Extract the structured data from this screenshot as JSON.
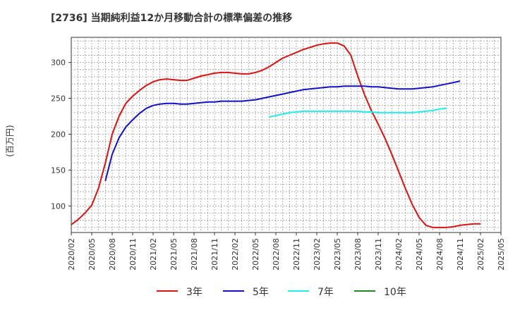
{
  "chart_data": {
    "type": "line",
    "title": "[2736]  当期純利益12か月移動合計の標準偏差の推移",
    "ylabel": "(百万円)",
    "xlabel": "",
    "ylim": [
      63,
      335
    ],
    "yticks": [
      100,
      150,
      200,
      250,
      300
    ],
    "xticks": [
      "2020/02",
      "2020/05",
      "2020/08",
      "2020/11",
      "2021/02",
      "2021/05",
      "2021/08",
      "2021/11",
      "2022/02",
      "2022/05",
      "2022/08",
      "2022/11",
      "2023/02",
      "2023/05",
      "2023/08",
      "2023/11",
      "2024/02",
      "2024/05",
      "2024/08",
      "2024/11",
      "2025/02",
      "2025/05"
    ],
    "grid": true,
    "legend_position": "bottom",
    "series": [
      {
        "name": "3年",
        "color": "#dd1111",
        "start_index": 0,
        "values": [
          74,
          81,
          90,
          101,
          125,
          160,
          200,
          225,
          243,
          253,
          261,
          268,
          273,
          276,
          277,
          276,
          275,
          275,
          278,
          281,
          283,
          285,
          286,
          286,
          285,
          284,
          284,
          286,
          289,
          294,
          300,
          306,
          310,
          314,
          318,
          321,
          324,
          326,
          327,
          327,
          323,
          310,
          281,
          255,
          233,
          214,
          194,
          172,
          148,
          124,
          102,
          84,
          73,
          70,
          70,
          70,
          71,
          73,
          74,
          75,
          75
        ]
      },
      {
        "name": "5年",
        "color": "#1111cc",
        "start_index": 5,
        "values": [
          135,
          172,
          195,
          210,
          220,
          229,
          236,
          240,
          242,
          243,
          243,
          242,
          242,
          243,
          244,
          245,
          245,
          246,
          246,
          246,
          246,
          247,
          248,
          250,
          252,
          254,
          256,
          258,
          260,
          262,
          263,
          264,
          265,
          266,
          266,
          267,
          267,
          267,
          267,
          266,
          266,
          265,
          264,
          263,
          263,
          263,
          264,
          265,
          266,
          268,
          270,
          272,
          274
        ]
      },
      {
        "name": "7年",
        "color": "#22eeee",
        "start_index": 29,
        "values": [
          224,
          226,
          228,
          230,
          231,
          232,
          232,
          232,
          232,
          232,
          232,
          232,
          232,
          232,
          231,
          231,
          230,
          230,
          230,
          230,
          230,
          230,
          231,
          232,
          233,
          235,
          236
        ]
      },
      {
        "name": "10年",
        "color": "#228822",
        "start_index": 0,
        "values": []
      }
    ]
  }
}
